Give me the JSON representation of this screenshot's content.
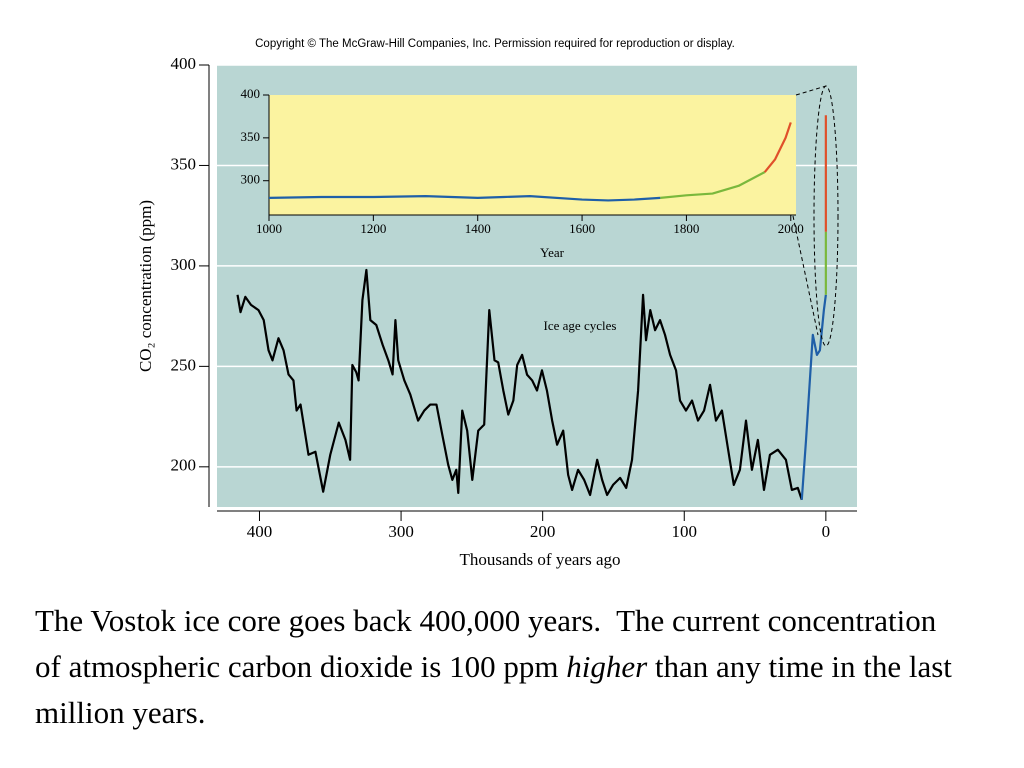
{
  "copyright": "Copyright © The McGraw-Hill Companies, Inc. Permission required for reproduction or display.",
  "chart_data": [
    {
      "type": "line",
      "ylabel": "CO₂ concentration (ppm)",
      "xlabel": "Thousands of years ago",
      "annotation": "Ice age cycles",
      "xlim": [
        430,
        -22
      ],
      "ylim": [
        180,
        400
      ],
      "xticks": [
        400,
        300,
        200,
        100,
        0
      ],
      "yticks": [
        200,
        250,
        300,
        350,
        400
      ],
      "grid": true,
      "background": "#b9d6d3",
      "series": [
        {
          "color": "#000000",
          "x": [
            415.5,
            413.4,
            410,
            406,
            400.7,
            397,
            393.6,
            390.8,
            386.6,
            383,
            379.5,
            376,
            373.8,
            371,
            365.4,
            360.5,
            355,
            350,
            344,
            339.3,
            336,
            334.4,
            331.6,
            330,
            327.3,
            324.5,
            321.7,
            317.5,
            313,
            309,
            306,
            304,
            302,
            297.7,
            293.5,
            288,
            283.6,
            279.4,
            275,
            270.9,
            266.7,
            263.8,
            261,
            259.6,
            256.8,
            253.3,
            249.7,
            245.5,
            241.3,
            237.7,
            234,
            231.4,
            227.8,
            224.3,
            220.7,
            218,
            214.5,
            211,
            207.4,
            204,
            200.5,
            197,
            193.3,
            189.8,
            185.5,
            182,
            179.2,
            175,
            170.7,
            166.5,
            161.5,
            158,
            154.5,
            150.3,
            145.3,
            141,
            136.9,
            132.6,
            129.1,
            127,
            124,
            120.6,
            117.1,
            113.6,
            110,
            105.8,
            103,
            98.8,
            94.5,
            90.3,
            86,
            81.8,
            77.6,
            73.4,
            69,
            65,
            60.7,
            56.4,
            52.2,
            48,
            43.7,
            39.5,
            33.9,
            28.2,
            24,
            19.8,
            17
          ],
          "values": [
            285.6,
            277,
            284.6,
            280.6,
            278,
            273,
            258,
            253,
            264,
            258,
            246,
            243,
            228,
            231,
            206,
            207.5,
            187.6,
            206,
            222,
            213.4,
            203.5,
            250.7,
            247,
            243,
            283,
            298,
            273,
            270.6,
            260.7,
            253,
            246,
            273,
            253,
            243,
            236,
            223,
            228,
            231,
            231,
            216,
            201,
            193.5,
            198.5,
            187,
            228,
            218,
            193.5,
            218,
            221,
            278,
            253,
            252,
            238,
            226,
            233,
            250.7,
            255.7,
            245.8,
            243,
            238,
            248,
            238,
            223,
            211,
            218,
            196,
            188.5,
            198.5,
            193.5,
            186,
            203.5,
            193.5,
            186,
            191,
            194.5,
            189.5,
            203.5,
            238,
            285.6,
            263,
            278,
            268,
            273,
            265.7,
            255.7,
            248,
            233,
            228,
            233,
            223,
            228,
            240.8,
            223,
            228,
            208.5,
            191,
            198.5,
            223,
            198.5,
            213.4,
            188.5,
            206,
            208.5,
            203.5,
            188.5,
            189.5,
            183.6
          ]
        },
        {
          "color": "#1f5fa8",
          "x": [
            17,
            14,
            11.3,
            9.2,
            6.3,
            4.2,
            1.4,
            0
          ],
          "values": [
            183.6,
            213.4,
            243,
            265.7,
            255.7,
            258,
            278,
            285.6
          ]
        },
        {
          "color": "#7ab83c",
          "x": [
            0,
            0
          ],
          "values": [
            285.6,
            317
          ]
        },
        {
          "color": "#e0502a",
          "x": [
            0,
            0
          ],
          "values": [
            317,
            375
          ]
        }
      ]
    },
    {
      "type": "line",
      "xlabel": "Year",
      "xlim": [
        1000,
        2010
      ],
      "ylim": [
        260,
        400
      ],
      "xticks": [
        1000,
        1200,
        1400,
        1600,
        1800,
        2000
      ],
      "yticks": [
        300,
        350,
        400
      ],
      "grid": false,
      "background": "#fbf3a0",
      "series": [
        {
          "color": "#1f5fa8",
          "x": [
            1000,
            1100,
            1200,
            1300,
            1400,
            1450,
            1500,
            1600,
            1650,
            1700,
            1750
          ],
          "values": [
            280,
            281,
            281,
            282,
            280,
            281,
            282,
            278,
            277,
            278,
            280
          ]
        },
        {
          "color": "#7ab83c",
          "x": [
            1750,
            1800,
            1850,
            1900,
            1950
          ],
          "values": [
            280,
            283,
            285,
            294,
            310
          ]
        },
        {
          "color": "#e0502a",
          "x": [
            1950,
            1970,
            1990,
            2000
          ],
          "values": [
            310,
            325,
            350,
            368
          ]
        }
      ]
    }
  ],
  "caption": [
    "The Vostok ice core goes back 400,000 years.  The current concentration of atmospheric carbon dioxide is 100 ppm",
    "higher",
    "than any time in the last million years."
  ]
}
